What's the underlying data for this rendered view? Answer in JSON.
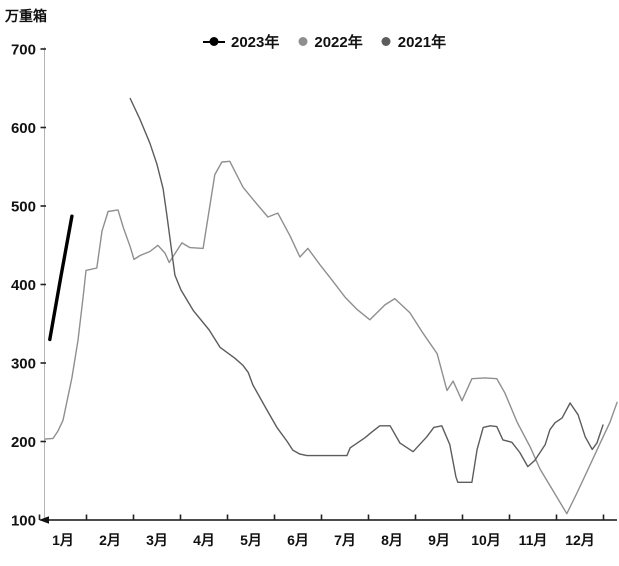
{
  "unit_label": "万重箱",
  "chart_data": {
    "type": "line",
    "title": "",
    "y_axis": {
      "label": "万重箱",
      "min": 100,
      "max": 700,
      "ticks": [
        700,
        600,
        500,
        400,
        300,
        200,
        100
      ]
    },
    "x_axis": {
      "labels": [
        "1月",
        "2月",
        "3月",
        "4月",
        "5月",
        "6月",
        "7月",
        "8月",
        "9月",
        "10月",
        "11月",
        "12月"
      ],
      "range_months": [
        0.5,
        12.85
      ]
    },
    "legend": {
      "position": "top-center",
      "items": [
        "2023年",
        "2022年",
        "2021年"
      ]
    },
    "grid": "off",
    "series": [
      {
        "name": "2023年",
        "color": "#000000",
        "line_width": 3.4,
        "legend_marker": "line-dot",
        "points": [
          [
            0.72,
            330
          ],
          [
            0.95,
            408
          ],
          [
            1.19,
            487
          ]
        ]
      },
      {
        "name": "2022年",
        "color": "#8f8f8f",
        "line_width": 1.4,
        "legend_marker": "dot",
        "points": [
          [
            0.62,
            203
          ],
          [
            0.79,
            204
          ],
          [
            0.89,
            213
          ],
          [
            1.0,
            227
          ],
          [
            1.19,
            281
          ],
          [
            1.32,
            329
          ],
          [
            1.43,
            385
          ],
          [
            1.49,
            418
          ],
          [
            1.72,
            421
          ],
          [
            1.83,
            468
          ],
          [
            1.96,
            493
          ],
          [
            2.17,
            495
          ],
          [
            2.28,
            473
          ],
          [
            2.43,
            448
          ],
          [
            2.51,
            432
          ],
          [
            2.64,
            437
          ],
          [
            2.85,
            442
          ],
          [
            3.02,
            450
          ],
          [
            3.17,
            440
          ],
          [
            3.26,
            428
          ],
          [
            3.53,
            453
          ],
          [
            3.7,
            447
          ],
          [
            3.98,
            446
          ],
          [
            4.23,
            540
          ],
          [
            4.38,
            556
          ],
          [
            4.55,
            557
          ],
          [
            4.83,
            524
          ],
          [
            5.09,
            505
          ],
          [
            5.36,
            486
          ],
          [
            5.57,
            491
          ],
          [
            5.83,
            462
          ],
          [
            6.04,
            435
          ],
          [
            6.21,
            446
          ],
          [
            6.47,
            425
          ],
          [
            6.72,
            406
          ],
          [
            7.0,
            384
          ],
          [
            7.26,
            368
          ],
          [
            7.53,
            355
          ],
          [
            7.85,
            374
          ],
          [
            8.06,
            382
          ],
          [
            8.38,
            364
          ],
          [
            8.66,
            338
          ],
          [
            8.96,
            312
          ],
          [
            9.17,
            265
          ],
          [
            9.3,
            277
          ],
          [
            9.49,
            252
          ],
          [
            9.7,
            280
          ],
          [
            9.98,
            281
          ],
          [
            10.23,
            280
          ],
          [
            10.4,
            262
          ],
          [
            10.66,
            225
          ],
          [
            10.94,
            193
          ],
          [
            11.15,
            165
          ],
          [
            11.4,
            140
          ],
          [
            11.72,
            108
          ],
          [
            11.94,
            135
          ],
          [
            12.15,
            162
          ],
          [
            12.43,
            198
          ],
          [
            12.64,
            225
          ],
          [
            12.79,
            250
          ]
        ]
      },
      {
        "name": "2021年",
        "color": "#5c5c5c",
        "line_width": 1.4,
        "legend_marker": "dot",
        "points": [
          [
            2.43,
            637
          ],
          [
            2.64,
            610
          ],
          [
            2.85,
            580
          ],
          [
            3.0,
            553
          ],
          [
            3.13,
            522
          ],
          [
            3.21,
            488
          ],
          [
            3.3,
            448
          ],
          [
            3.38,
            412
          ],
          [
            3.51,
            393
          ],
          [
            3.77,
            367
          ],
          [
            4.11,
            342
          ],
          [
            4.34,
            320
          ],
          [
            4.66,
            306
          ],
          [
            4.83,
            297
          ],
          [
            4.94,
            288
          ],
          [
            5.04,
            272
          ],
          [
            5.34,
            240
          ],
          [
            5.55,
            218
          ],
          [
            5.77,
            200
          ],
          [
            5.89,
            189
          ],
          [
            6.04,
            184
          ],
          [
            6.19,
            182
          ],
          [
            7.04,
            182
          ],
          [
            7.11,
            192
          ],
          [
            7.26,
            198
          ],
          [
            7.43,
            205
          ],
          [
            7.57,
            212
          ],
          [
            7.74,
            220
          ],
          [
            7.96,
            220
          ],
          [
            8.17,
            198
          ],
          [
            8.45,
            187
          ],
          [
            8.74,
            206
          ],
          [
            8.89,
            218
          ],
          [
            9.06,
            220
          ],
          [
            9.23,
            196
          ],
          [
            9.36,
            155
          ],
          [
            9.4,
            148
          ],
          [
            9.7,
            148
          ],
          [
            9.81,
            190
          ],
          [
            9.94,
            218
          ],
          [
            10.09,
            220
          ],
          [
            10.23,
            219
          ],
          [
            10.36,
            202
          ],
          [
            10.55,
            199
          ],
          [
            10.72,
            186
          ],
          [
            10.89,
            168
          ],
          [
            11.04,
            176
          ],
          [
            11.26,
            196
          ],
          [
            11.36,
            215
          ],
          [
            11.47,
            224
          ],
          [
            11.62,
            230
          ],
          [
            11.79,
            249
          ],
          [
            11.96,
            234
          ],
          [
            12.11,
            206
          ],
          [
            12.26,
            190
          ],
          [
            12.36,
            198
          ],
          [
            12.49,
            221
          ]
        ]
      }
    ]
  }
}
